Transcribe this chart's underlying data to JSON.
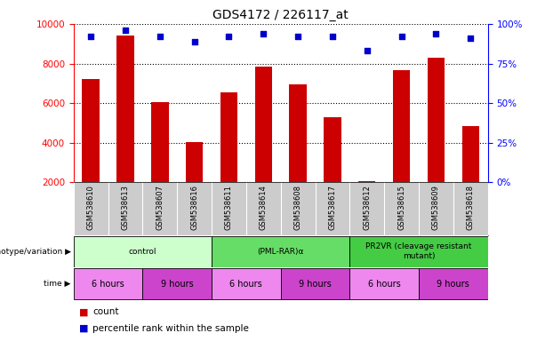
{
  "title": "GDS4172 / 226117_at",
  "samples": [
    "GSM538610",
    "GSM538613",
    "GSM538607",
    "GSM538616",
    "GSM538611",
    "GSM538614",
    "GSM538608",
    "GSM538617",
    "GSM538612",
    "GSM538615",
    "GSM538609",
    "GSM538618"
  ],
  "counts": [
    7200,
    9400,
    6050,
    4050,
    6550,
    7850,
    6950,
    5300,
    2050,
    7650,
    8300,
    4850
  ],
  "percentile_ranks": [
    92,
    96,
    92,
    89,
    92,
    94,
    92,
    92,
    83,
    92,
    94,
    91
  ],
  "ylim_left": [
    2000,
    10000
  ],
  "ylim_right": [
    0,
    100
  ],
  "yticks_left": [
    2000,
    4000,
    6000,
    8000,
    10000
  ],
  "yticks_right": [
    0,
    25,
    50,
    75,
    100
  ],
  "bar_color": "#cc0000",
  "dot_color": "#0000cc",
  "bar_bottom": 2000,
  "groups": [
    {
      "label": "control",
      "start": 0,
      "end": 4,
      "color": "#ccffcc"
    },
    {
      "label": "(PML-RAR)α",
      "start": 4,
      "end": 8,
      "color": "#66dd66"
    },
    {
      "label": "PR2VR (cleavage resistant\nmutant)",
      "start": 8,
      "end": 12,
      "color": "#44cc44"
    }
  ],
  "time_groups": [
    {
      "label": "6 hours",
      "start": 0,
      "end": 2,
      "color": "#ee88ee"
    },
    {
      "label": "9 hours",
      "start": 2,
      "end": 4,
      "color": "#cc44cc"
    },
    {
      "label": "6 hours",
      "start": 4,
      "end": 6,
      "color": "#ee88ee"
    },
    {
      "label": "9 hours",
      "start": 6,
      "end": 8,
      "color": "#cc44cc"
    },
    {
      "label": "6 hours",
      "start": 8,
      "end": 10,
      "color": "#ee88ee"
    },
    {
      "label": "9 hours",
      "start": 10,
      "end": 12,
      "color": "#cc44cc"
    }
  ],
  "legend_count_color": "#cc0000",
  "legend_dot_color": "#0000cc",
  "bg_color": "#ffffff",
  "sample_bg": "#cccccc",
  "label_genotype": "genotype/variation",
  "label_time": "time"
}
